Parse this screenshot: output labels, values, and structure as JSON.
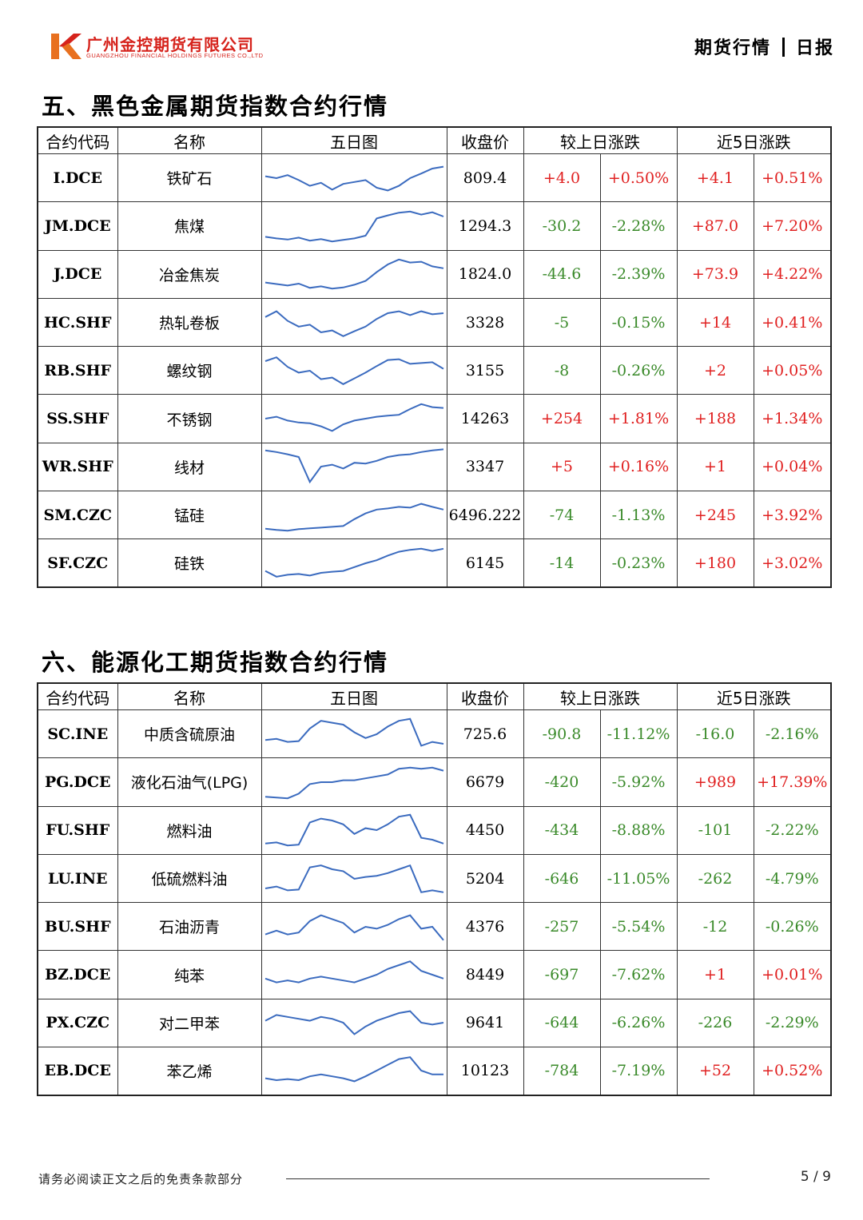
{
  "header": {
    "company_cn": "广州金控期货有限公司",
    "company_en": "GUANGZHOU FINANCIAL HOLDINGS FUTURES CO.,LTD",
    "doc_left": "期货行情",
    "doc_right": "日报",
    "brand_color": "#d6231c"
  },
  "columns": [
    "合约代码",
    "名称",
    "五日图",
    "收盘价",
    "较上日涨跌",
    "近5日涨跌"
  ],
  "sections": [
    {
      "title": "五、黑色金属期货指数合约行情",
      "rows": [
        {
          "code": "I.DCE",
          "name": "铁矿石",
          "close": "809.4",
          "d_chg": "+4.0",
          "d_pct": "+0.50%",
          "w_chg": "+4.1",
          "w_pct": "+0.51%",
          "spark": [
            0.45,
            0.5,
            0.42,
            0.55,
            0.7,
            0.62,
            0.8,
            0.65,
            0.6,
            0.55,
            0.75,
            0.82,
            0.7,
            0.5,
            0.38,
            0.25,
            0.2
          ]
        },
        {
          "code": "JM.DCE",
          "name": "焦煤",
          "close": "1294.3",
          "d_chg": "-30.2",
          "d_pct": "-2.28%",
          "w_chg": "+87.0",
          "w_pct": "+7.20%",
          "spark": [
            0.78,
            0.82,
            0.85,
            0.8,
            0.88,
            0.84,
            0.9,
            0.86,
            0.82,
            0.75,
            0.3,
            0.22,
            0.15,
            0.12,
            0.2,
            0.14,
            0.25
          ]
        },
        {
          "code": "J.DCE",
          "name": "冶金焦炭",
          "close": "1824.0",
          "d_chg": "-44.6",
          "d_pct": "-2.39%",
          "w_chg": "+73.9",
          "w_pct": "+4.22%",
          "spark": [
            0.72,
            0.76,
            0.8,
            0.75,
            0.86,
            0.82,
            0.88,
            0.85,
            0.78,
            0.68,
            0.45,
            0.25,
            0.12,
            0.2,
            0.18,
            0.3,
            0.35
          ]
        },
        {
          "code": "HC.SHF",
          "name": "热轧卷板",
          "close": "3328",
          "d_chg": "-5",
          "d_pct": "-0.15%",
          "w_chg": "+14",
          "w_pct": "+0.41%",
          "spark": [
            0.35,
            0.2,
            0.45,
            0.6,
            0.55,
            0.75,
            0.7,
            0.85,
            0.72,
            0.6,
            0.4,
            0.25,
            0.2,
            0.3,
            0.2,
            0.28,
            0.25
          ]
        },
        {
          "code": "RB.SHF",
          "name": "螺纹钢",
          "close": "3155",
          "d_chg": "-8",
          "d_pct": "-0.26%",
          "w_chg": "+2",
          "w_pct": "+0.05%",
          "spark": [
            0.25,
            0.15,
            0.4,
            0.55,
            0.5,
            0.72,
            0.68,
            0.85,
            0.7,
            0.55,
            0.38,
            0.22,
            0.2,
            0.32,
            0.3,
            0.28,
            0.45
          ]
        },
        {
          "code": "SS.SHF",
          "name": "不锈钢",
          "close": "14263",
          "d_chg": "+254",
          "d_pct": "+1.81%",
          "w_chg": "+188",
          "w_pct": "+1.34%",
          "spark": [
            0.5,
            0.45,
            0.55,
            0.6,
            0.62,
            0.7,
            0.82,
            0.65,
            0.55,
            0.5,
            0.45,
            0.42,
            0.4,
            0.25,
            0.12,
            0.2,
            0.22
          ]
        },
        {
          "code": "WR.SHF",
          "name": "线材",
          "close": "3347",
          "d_chg": "+5",
          "d_pct": "+0.16%",
          "w_chg": "+1",
          "w_pct": "+0.04%",
          "spark": [
            0.08,
            0.12,
            0.18,
            0.25,
            0.9,
            0.5,
            0.45,
            0.55,
            0.4,
            0.42,
            0.35,
            0.25,
            0.2,
            0.18,
            0.12,
            0.08,
            0.05
          ]
        },
        {
          "code": "SM.CZC",
          "name": "锰硅",
          "close": "6496.222",
          "d_chg": "-74",
          "d_pct": "-1.13%",
          "w_chg": "+245",
          "w_pct": "+3.92%",
          "spark": [
            0.85,
            0.88,
            0.9,
            0.86,
            0.84,
            0.82,
            0.8,
            0.78,
            0.6,
            0.45,
            0.35,
            0.32,
            0.28,
            0.3,
            0.2,
            0.28,
            0.35
          ]
        },
        {
          "code": "SF.CZC",
          "name": "硅铁",
          "close": "6145",
          "d_chg": "-14",
          "d_pct": "-0.23%",
          "w_chg": "+180",
          "w_pct": "+3.02%",
          "spark": [
            0.7,
            0.85,
            0.8,
            0.78,
            0.82,
            0.75,
            0.72,
            0.7,
            0.6,
            0.5,
            0.42,
            0.3,
            0.2,
            0.15,
            0.12,
            0.18,
            0.12
          ]
        }
      ]
    },
    {
      "title": "六、能源化工期货指数合约行情",
      "rows": [
        {
          "code": "SC.INE",
          "name": "中质含硫原油",
          "close": "725.6",
          "d_chg": "-90.8",
          "d_pct": "-11.12%",
          "w_chg": "-16.0",
          "w_pct": "-2.16%",
          "spark": [
            0.65,
            0.62,
            0.7,
            0.68,
            0.35,
            0.15,
            0.2,
            0.25,
            0.45,
            0.6,
            0.5,
            0.3,
            0.15,
            0.1,
            0.8,
            0.7,
            0.75
          ]
        },
        {
          "code": "PG.DCE",
          "name": "液化石油气(LPG)",
          "close": "6679",
          "d_chg": "-420",
          "d_pct": "-5.92%",
          "w_chg": "+989",
          "w_pct": "+17.39%",
          "spark": [
            0.88,
            0.9,
            0.92,
            0.8,
            0.55,
            0.5,
            0.5,
            0.45,
            0.45,
            0.4,
            0.35,
            0.3,
            0.15,
            0.12,
            0.15,
            0.12,
            0.2
          ]
        },
        {
          "code": "FU.SHF",
          "name": "燃料油",
          "close": "4450",
          "d_chg": "-434",
          "d_pct": "-8.88%",
          "w_chg": "-101",
          "w_pct": "-2.22%",
          "spark": [
            0.85,
            0.82,
            0.9,
            0.88,
            0.3,
            0.2,
            0.25,
            0.35,
            0.6,
            0.45,
            0.5,
            0.35,
            0.15,
            0.1,
            0.7,
            0.75,
            0.85
          ]
        },
        {
          "code": "LU.INE",
          "name": "低硫燃料油",
          "close": "5204",
          "d_chg": "-646",
          "d_pct": "-11.05%",
          "w_chg": "-262",
          "w_pct": "-4.79%",
          "spark": [
            0.75,
            0.7,
            0.8,
            0.78,
            0.2,
            0.15,
            0.25,
            0.3,
            0.5,
            0.45,
            0.42,
            0.35,
            0.25,
            0.15,
            0.85,
            0.8,
            0.85
          ]
        },
        {
          "code": "BU.SHF",
          "name": "石油沥青",
          "close": "4376",
          "d_chg": "-257",
          "d_pct": "-5.54%",
          "w_chg": "-12",
          "w_pct": "-0.26%",
          "spark": [
            0.7,
            0.6,
            0.7,
            0.65,
            0.35,
            0.2,
            0.3,
            0.4,
            0.65,
            0.5,
            0.55,
            0.45,
            0.3,
            0.2,
            0.55,
            0.5,
            0.85
          ]
        },
        {
          "code": "BZ.DCE",
          "name": "纯苯",
          "close": "8449",
          "d_chg": "-697",
          "d_pct": "-7.62%",
          "w_chg": "+1",
          "w_pct": "+0.01%",
          "spark": [
            0.6,
            0.7,
            0.65,
            0.7,
            0.6,
            0.55,
            0.6,
            0.65,
            0.7,
            0.6,
            0.5,
            0.35,
            0.25,
            0.15,
            0.4,
            0.5,
            0.6
          ]
        },
        {
          "code": "PX.CZC",
          "name": "对二甲苯",
          "close": "9641",
          "d_chg": "-644",
          "d_pct": "-6.26%",
          "w_chg": "-226",
          "w_pct": "-2.29%",
          "spark": [
            0.45,
            0.3,
            0.35,
            0.4,
            0.45,
            0.35,
            0.4,
            0.5,
            0.8,
            0.6,
            0.45,
            0.35,
            0.25,
            0.2,
            0.5,
            0.55,
            0.5
          ]
        },
        {
          "code": "EB.DCE",
          "name": "苯乙烯",
          "close": "10123",
          "d_chg": "-784",
          "d_pct": "-7.19%",
          "w_chg": "+52",
          "w_pct": "+0.52%",
          "spark": [
            0.7,
            0.75,
            0.72,
            0.75,
            0.65,
            0.6,
            0.65,
            0.7,
            0.78,
            0.65,
            0.5,
            0.35,
            0.2,
            0.15,
            0.5,
            0.6,
            0.6
          ]
        }
      ]
    }
  ],
  "footer": {
    "disclaimer": "请务必阅读正文之后的免责条款部分",
    "page": "5 / 9"
  }
}
